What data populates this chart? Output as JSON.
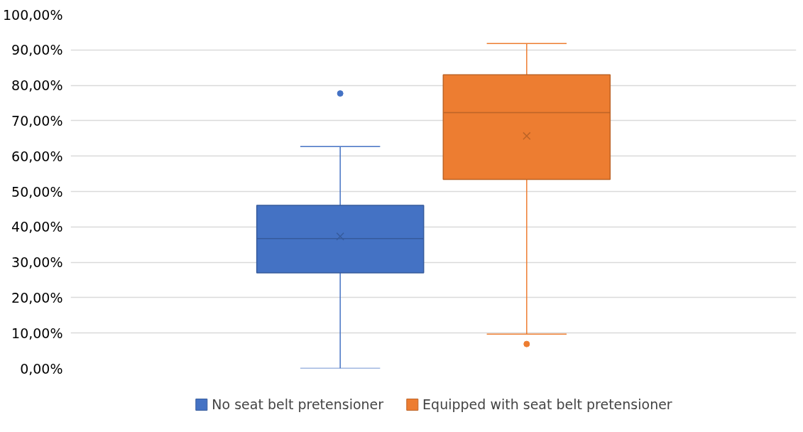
{
  "chart_data": {
    "type": "box",
    "categories": [
      null
    ],
    "series": [
      {
        "name": "No seat belt pretensioner",
        "color": "#4472c4",
        "boxes": [
          {
            "low": 0,
            "q1": 27.0,
            "median": 36.7,
            "q3": 46.1,
            "high": 62.7,
            "mean": 37.3,
            "outliers": [
              77.7
            ]
          }
        ]
      },
      {
        "name": "Equipped with seat belt pretensioner",
        "color": "#ed7d31",
        "boxes": [
          {
            "low": 9.7,
            "q1": 53.4,
            "median": 72.3,
            "q3": 83.0,
            "high": 91.8,
            "mean": 65.7,
            "outliers": [
              6.9
            ]
          }
        ]
      }
    ],
    "ylim": [
      0,
      100
    ],
    "yticks": [
      {
        "value": 0,
        "label": "0,00%"
      },
      {
        "value": 10,
        "label": "10,00%"
      },
      {
        "value": 20,
        "label": "20,00%"
      },
      {
        "value": 30,
        "label": "30,00%"
      },
      {
        "value": 40,
        "label": "40,00%"
      },
      {
        "value": 50,
        "label": "50,00%"
      },
      {
        "value": 60,
        "label": "60,00%"
      },
      {
        "value": 70,
        "label": "70,00%"
      },
      {
        "value": 80,
        "label": "80,00%"
      },
      {
        "value": 90,
        "label": "90,00%"
      },
      {
        "value": 100,
        "label": "100,00%"
      }
    ],
    "grid": "y",
    "legend": "bottom",
    "tick_labels": "y"
  }
}
